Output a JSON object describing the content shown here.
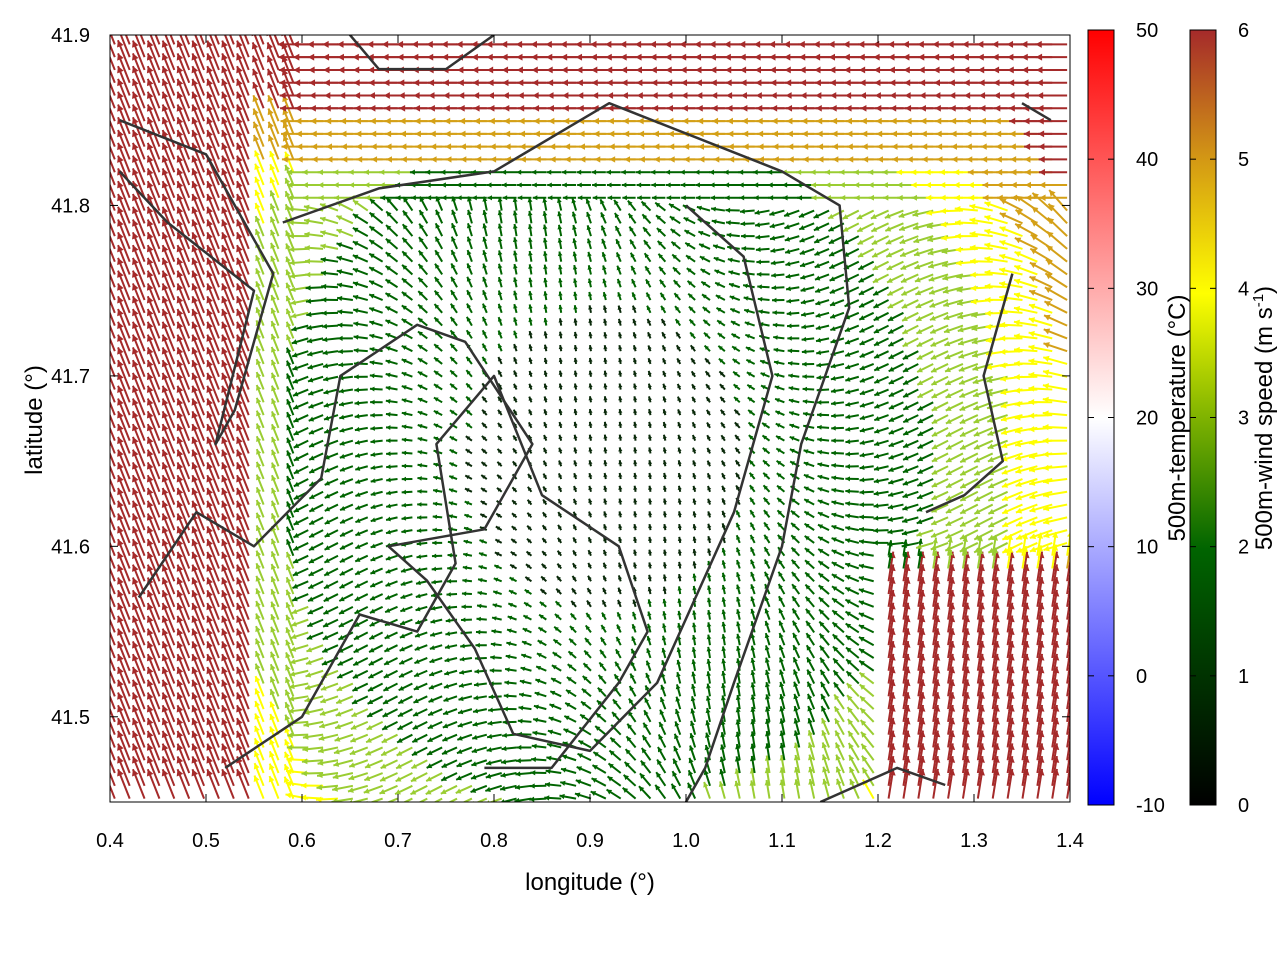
{
  "chart_data": {
    "type": "vector-field",
    "xlabel": "longitude (°)",
    "ylabel": "latitude (°)",
    "xlim": [
      0.4,
      1.4
    ],
    "ylim": [
      41.45,
      41.9
    ],
    "xticks": [
      "0.4",
      "0.5",
      "0.6",
      "0.7",
      "0.8",
      "0.9",
      "1.0",
      "1.1",
      "1.2",
      "1.3",
      "1.4"
    ],
    "yticks": [
      "41.5",
      "41.6",
      "41.7",
      "41.8",
      "41.9"
    ],
    "colorbars": [
      {
        "label": "500m-temperature (°C)",
        "range": [
          -10,
          50
        ],
        "ticks": [
          "-10",
          "0",
          "10",
          "20",
          "30",
          "40",
          "50"
        ],
        "colors": [
          "#0000ff",
          "#ffffff",
          "#ff0000"
        ]
      },
      {
        "label_main": "500m-wind speed (m s",
        "label_sup": "-1",
        "label_end": ")",
        "range": [
          0,
          6
        ],
        "ticks": [
          "0",
          "1",
          "2",
          "3",
          "4",
          "5",
          "6"
        ],
        "colors": [
          "#000000",
          "#006400",
          "#9acd32",
          "#ffff00",
          "#d4a017",
          "#a0522d",
          "#a52a2a"
        ]
      }
    ],
    "field_note_colors": {
      "strong_wind": "#a52a2a",
      "moderate_wind": "#ffff00",
      "light_wind": "#006400",
      "contour": "#333333"
    }
  }
}
